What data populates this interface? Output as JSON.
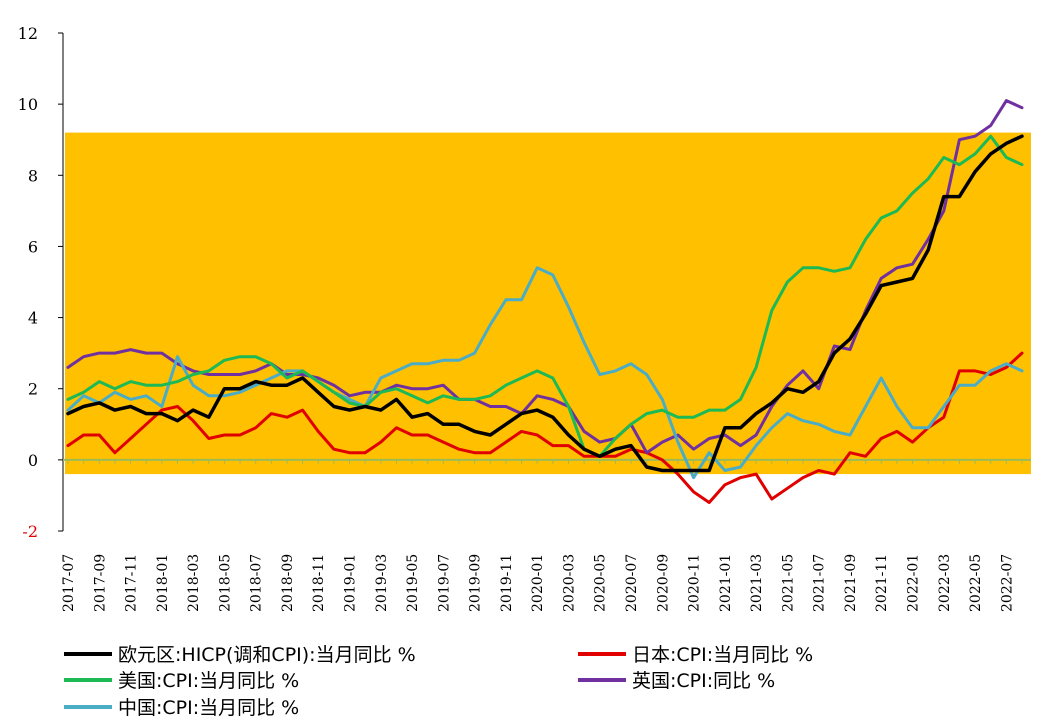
{
  "chart_data": {
    "type": "line",
    "title": "",
    "xlabel": "",
    "ylabel": "",
    "ylim": [
      -2,
      12
    ],
    "yticks": [
      -2,
      0,
      2,
      4,
      6,
      8,
      10,
      12
    ],
    "categories": [
      "2017-07",
      "2017-08",
      "2017-09",
      "2017-10",
      "2017-11",
      "2017-12",
      "2018-01",
      "2018-02",
      "2018-03",
      "2018-04",
      "2018-05",
      "2018-06",
      "2018-07",
      "2018-08",
      "2018-09",
      "2018-10",
      "2018-11",
      "2018-12",
      "2019-01",
      "2019-02",
      "2019-03",
      "2019-04",
      "2019-05",
      "2019-06",
      "2019-07",
      "2019-08",
      "2019-09",
      "2019-10",
      "2019-11",
      "2019-12",
      "2020-01",
      "2020-02",
      "2020-03",
      "2020-04",
      "2020-05",
      "2020-06",
      "2020-07",
      "2020-08",
      "2020-09",
      "2020-10",
      "2020-11",
      "2020-12",
      "2021-01",
      "2021-02",
      "2021-03",
      "2021-04",
      "2021-05",
      "2021-06",
      "2021-07",
      "2021-08",
      "2021-09",
      "2021-10",
      "2021-11",
      "2021-12",
      "2022-01",
      "2022-02",
      "2022-03",
      "2022-04",
      "2022-05",
      "2022-06",
      "2022-07",
      "2022-08"
    ],
    "tick_labels": [
      "2017-07",
      "2017-09",
      "2017-11",
      "2018-01",
      "2018-03",
      "2018-05",
      "2018-07",
      "2018-09",
      "2018-11",
      "2019-01",
      "2019-03",
      "2019-05",
      "2019-07",
      "2019-09",
      "2019-11",
      "2020-01",
      "2020-03",
      "2020-05",
      "2020-07",
      "2020-09",
      "2020-11",
      "2021-01",
      "2021-03",
      "2021-05",
      "2021-07",
      "2021-09",
      "2021-11",
      "2022-01",
      "2022-03",
      "2022-05",
      "2022-07"
    ],
    "highlight_band": {
      "from": -0.4,
      "to": 9.2,
      "color": "#FFC000"
    },
    "series": [
      {
        "name": "欧元区:HICP(调和CPI):当月同比 %",
        "color": "#000000",
        "values": [
          1.3,
          1.5,
          1.6,
          1.4,
          1.5,
          1.3,
          1.3,
          1.1,
          1.4,
          1.2,
          2.0,
          2.0,
          2.2,
          2.1,
          2.1,
          2.3,
          1.9,
          1.5,
          1.4,
          1.5,
          1.4,
          1.7,
          1.2,
          1.3,
          1.0,
          1.0,
          0.8,
          0.7,
          1.0,
          1.3,
          1.4,
          1.2,
          0.7,
          0.3,
          0.1,
          0.3,
          0.4,
          -0.2,
          -0.3,
          -0.3,
          -0.3,
          -0.3,
          0.9,
          0.9,
          1.3,
          1.6,
          2.0,
          1.9,
          2.2,
          3.0,
          3.4,
          4.1,
          4.9,
          5.0,
          5.1,
          5.9,
          7.4,
          7.4,
          8.1,
          8.6,
          8.9,
          9.1
        ]
      },
      {
        "name": "日本:CPI:当月同比 %",
        "color": "#E00000",
        "values": [
          0.4,
          0.7,
          0.7,
          0.2,
          0.6,
          1.0,
          1.4,
          1.5,
          1.1,
          0.6,
          0.7,
          0.7,
          0.9,
          1.3,
          1.2,
          1.4,
          0.8,
          0.3,
          0.2,
          0.2,
          0.5,
          0.9,
          0.7,
          0.7,
          0.5,
          0.3,
          0.2,
          0.2,
          0.5,
          0.8,
          0.7,
          0.4,
          0.4,
          0.1,
          0.1,
          0.1,
          0.3,
          0.2,
          0.0,
          -0.4,
          -0.9,
          -1.2,
          -0.7,
          -0.5,
          -0.4,
          -1.1,
          -0.8,
          -0.5,
          -0.3,
          -0.4,
          0.2,
          0.1,
          0.6,
          0.8,
          0.5,
          0.9,
          1.2,
          2.5,
          2.5,
          2.4,
          2.6,
          3.0
        ]
      },
      {
        "name": "美国:CPI:当月同比 %",
        "color": "#1DB954",
        "values": [
          1.7,
          1.9,
          2.2,
          2.0,
          2.2,
          2.1,
          2.1,
          2.2,
          2.4,
          2.5,
          2.8,
          2.9,
          2.9,
          2.7,
          2.3,
          2.5,
          2.2,
          1.9,
          1.6,
          1.5,
          1.9,
          2.0,
          1.8,
          1.6,
          1.8,
          1.7,
          1.7,
          1.8,
          2.1,
          2.3,
          2.5,
          2.3,
          1.5,
          0.3,
          0.1,
          0.6,
          1.0,
          1.3,
          1.4,
          1.2,
          1.2,
          1.4,
          1.4,
          1.7,
          2.6,
          4.2,
          5.0,
          5.4,
          5.4,
          5.3,
          5.4,
          6.2,
          6.8,
          7.0,
          7.5,
          7.9,
          8.5,
          8.3,
          8.6,
          9.1,
          8.5,
          8.3
        ]
      },
      {
        "name": "英国:CPI:同比 %",
        "color": "#7030A0",
        "values": [
          2.6,
          2.9,
          3.0,
          3.0,
          3.1,
          3.0,
          3.0,
          2.7,
          2.5,
          2.4,
          2.4,
          2.4,
          2.5,
          2.7,
          2.4,
          2.4,
          2.3,
          2.1,
          1.8,
          1.9,
          1.9,
          2.1,
          2.0,
          2.0,
          2.1,
          1.7,
          1.7,
          1.5,
          1.5,
          1.3,
          1.8,
          1.7,
          1.5,
          0.8,
          0.5,
          0.6,
          1.0,
          0.2,
          0.5,
          0.7,
          0.3,
          0.6,
          0.7,
          0.4,
          0.7,
          1.5,
          2.1,
          2.5,
          2.0,
          3.2,
          3.1,
          4.2,
          5.1,
          5.4,
          5.5,
          6.2,
          7.0,
          9.0,
          9.1,
          9.4,
          10.1,
          9.9
        ]
      },
      {
        "name": "中国:CPI:当月同比 %",
        "color": "#4BACC6",
        "values": [
          1.4,
          1.8,
          1.6,
          1.9,
          1.7,
          1.8,
          1.5,
          2.9,
          2.1,
          1.8,
          1.8,
          1.9,
          2.1,
          2.3,
          2.5,
          2.5,
          2.2,
          1.9,
          1.7,
          1.5,
          2.3,
          2.5,
          2.7,
          2.7,
          2.8,
          2.8,
          3.0,
          3.8,
          4.5,
          4.5,
          5.4,
          5.2,
          4.3,
          3.3,
          2.4,
          2.5,
          2.7,
          2.4,
          1.7,
          0.5,
          -0.5,
          0.2,
          -0.3,
          -0.2,
          0.4,
          0.9,
          1.3,
          1.1,
          1.0,
          0.8,
          0.7,
          1.5,
          2.3,
          1.5,
          0.9,
          0.9,
          1.5,
          2.1,
          2.1,
          2.5,
          2.7,
          2.5
        ]
      }
    ]
  }
}
